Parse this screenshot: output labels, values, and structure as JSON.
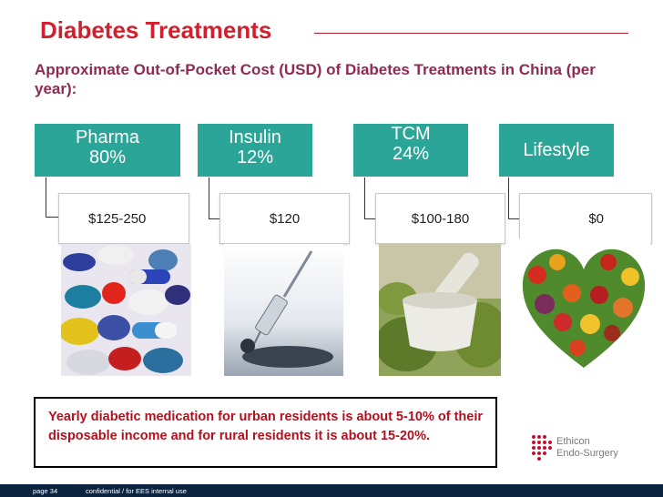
{
  "title": "Diabetes Treatments",
  "subtitle": "Approximate Out-of-Pocket Cost (USD) of Diabetes Treatments in China (per year):",
  "treatments": [
    {
      "name": "Pharma",
      "share": "80%",
      "cost": "$125-250",
      "image_icon": "pills-photo"
    },
    {
      "name": "Insulin",
      "share": "12%",
      "cost": "$120",
      "image_icon": "syringe-photo"
    },
    {
      "name": "TCM",
      "share": "24%",
      "cost": "$100-180",
      "image_icon": "mortar-herbs-photo"
    },
    {
      "name": "Lifestyle",
      "cost": "$0",
      "image_icon": "vegetable-heart-photo"
    }
  ],
  "callout": "Yearly diabetic medication for urban residents is about 5-10% of their disposable income  and for rural residents it is about 15-20%.",
  "footer": {
    "page": "page 34",
    "confidentiality": "confidential / for EES internal use"
  },
  "logo": {
    "line1": "Ethicon",
    "line2": "Endo-Surgery"
  },
  "colors": {
    "title": "#d0202e",
    "subtitle": "#8f2a52",
    "header_box": "#2ca599",
    "callout_text": "#b3101e",
    "footer_bar": "#0c2340"
  }
}
